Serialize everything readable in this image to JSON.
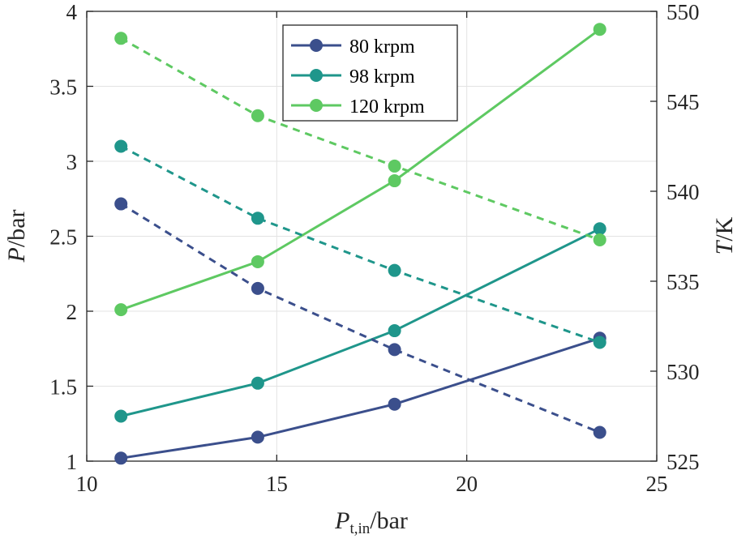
{
  "chart_data": {
    "type": "line",
    "xlabel": "P",
    "xlabel_sub": "t,in",
    "xlabel_unit": "/bar",
    "ylabel_left": "P",
    "ylabel_left_unit": "/bar",
    "ylabel_right": "T",
    "ylabel_right_unit": "/K",
    "xlim": [
      10,
      25
    ],
    "ylim_left": [
      1,
      4
    ],
    "ylim_right": [
      525,
      550
    ],
    "x_ticks": [
      10,
      15,
      20,
      25
    ],
    "y_left_ticks": [
      1,
      1.5,
      2,
      2.5,
      3,
      3.5,
      4
    ],
    "y_left_tick_labels": [
      "1",
      "1.5",
      "2",
      "2.5",
      "3",
      "3.5",
      "4"
    ],
    "y_right_ticks": [
      525,
      530,
      535,
      540,
      545,
      550
    ],
    "grid": true,
    "legend_position": "top-center",
    "series": [
      {
        "name": "80 krpm",
        "color": "#3b4f8c",
        "style": "solid",
        "axis": "left",
        "x": [
          10.9,
          14.5,
          18.1,
          23.5
        ],
        "y": [
          1.02,
          1.16,
          1.38,
          1.82
        ]
      },
      {
        "name": "98 krpm",
        "color": "#1f968b",
        "style": "solid",
        "axis": "left",
        "x": [
          10.9,
          14.5,
          18.1,
          23.5
        ],
        "y": [
          1.3,
          1.52,
          1.87,
          2.55
        ]
      },
      {
        "name": "120 krpm",
        "color": "#5ec962",
        "style": "solid",
        "axis": "left",
        "x": [
          10.9,
          14.5,
          18.1,
          23.5
        ],
        "y": [
          2.01,
          2.33,
          2.87,
          3.88
        ]
      },
      {
        "name": "80 krpm",
        "color": "#3b4f8c",
        "style": "dashed",
        "axis": "right",
        "x": [
          10.9,
          14.5,
          18.1,
          23.5
        ],
        "y": [
          539.3,
          534.6,
          531.2,
          526.6
        ]
      },
      {
        "name": "98 krpm",
        "color": "#1f968b",
        "style": "dashed",
        "axis": "right",
        "x": [
          10.9,
          14.5,
          18.1,
          23.5
        ],
        "y": [
          542.5,
          538.5,
          535.6,
          531.6
        ]
      },
      {
        "name": "120 krpm",
        "color": "#5ec962",
        "style": "dashed",
        "axis": "right",
        "x": [
          10.9,
          14.5,
          18.1,
          23.5
        ],
        "y": [
          548.5,
          544.2,
          541.4,
          537.3
        ]
      }
    ],
    "legend": [
      {
        "label": "80 krpm",
        "color": "#3b4f8c"
      },
      {
        "label": "98 krpm",
        "color": "#1f968b"
      },
      {
        "label": "120 krpm",
        "color": "#5ec962"
      }
    ]
  }
}
